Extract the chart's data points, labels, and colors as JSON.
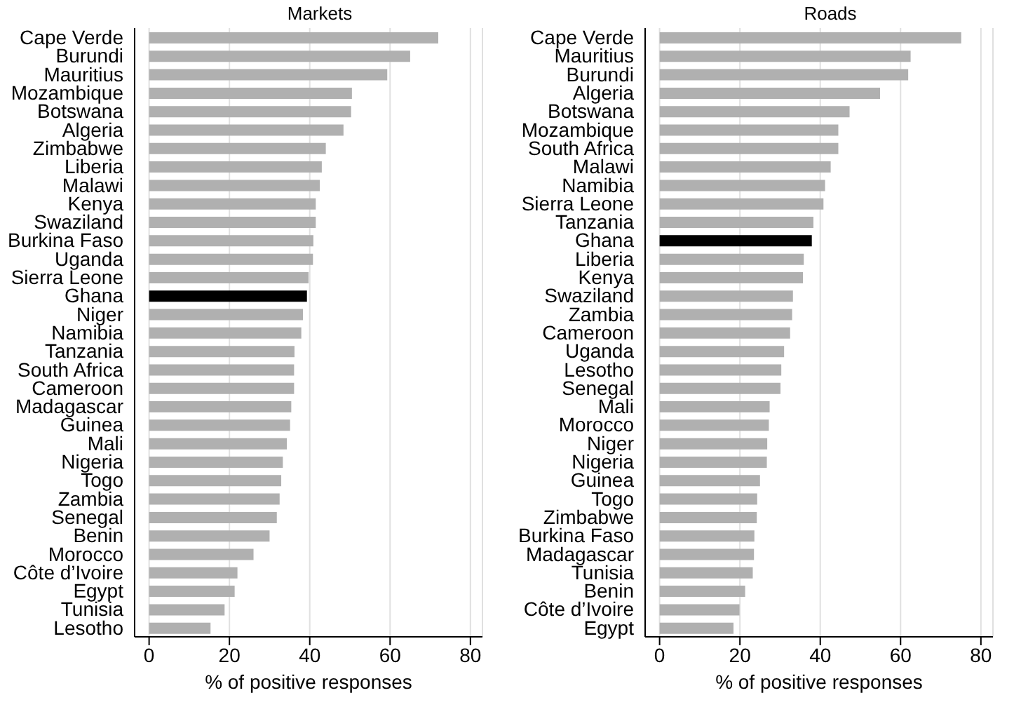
{
  "chart_data": [
    {
      "type": "bar",
      "orientation": "horizontal",
      "title": "Markets",
      "xlabel": "% of positive responses",
      "grid": "x",
      "xlim": [
        -3.6,
        83
      ],
      "xticks": [
        0,
        20,
        40,
        60,
        80
      ],
      "categories": [
        "Cape Verde",
        "Burundi",
        "Mauritius",
        "Mozambique",
        "Botswana",
        "Algeria",
        "Zimbabwe",
        "Liberia",
        "Malawi",
        "Kenya",
        "Swaziland",
        "Burkina Faso",
        "Uganda",
        "Sierra Leone",
        "Ghana",
        "Niger",
        "Namibia",
        "Tanzania",
        "South Africa",
        "Cameroon",
        "Madagascar",
        "Guinea",
        "Mali",
        "Nigeria",
        "Togo",
        "Zambia",
        "Senegal",
        "Benin",
        "Morocco",
        "Côte d’Ivoire",
        "Egypt",
        "Tunisia",
        "Lesotho"
      ],
      "values": [
        72.0,
        65.0,
        59.3,
        50.5,
        50.3,
        48.4,
        44.0,
        43.0,
        42.5,
        41.5,
        41.5,
        40.9,
        40.8,
        39.7,
        39.3,
        38.3,
        37.9,
        36.2,
        36.1,
        36.1,
        35.4,
        35.1,
        34.3,
        33.3,
        32.9,
        32.5,
        31.8,
        30.0,
        26.0,
        22.0,
        21.3,
        18.8,
        15.3
      ],
      "colors": [
        "#b0b0b0",
        "#b0b0b0",
        "#b0b0b0",
        "#b0b0b0",
        "#b0b0b0",
        "#b0b0b0",
        "#b0b0b0",
        "#b0b0b0",
        "#b0b0b0",
        "#b0b0b0",
        "#b0b0b0",
        "#b0b0b0",
        "#b0b0b0",
        "#b0b0b0",
        "#000000",
        "#b0b0b0",
        "#b0b0b0",
        "#b0b0b0",
        "#b0b0b0",
        "#b0b0b0",
        "#b0b0b0",
        "#b0b0b0",
        "#b0b0b0",
        "#b0b0b0",
        "#b0b0b0",
        "#b0b0b0",
        "#b0b0b0",
        "#b0b0b0",
        "#b0b0b0",
        "#b0b0b0",
        "#b0b0b0",
        "#b0b0b0",
        "#b0b0b0"
      ]
    },
    {
      "type": "bar",
      "orientation": "horizontal",
      "title": "Roads",
      "xlabel": "% of positive responses",
      "grid": "x",
      "xlim": [
        -3.6,
        83
      ],
      "xticks": [
        0,
        20,
        40,
        60,
        80
      ],
      "categories": [
        "Cape Verde",
        "Mauritius",
        "Burundi",
        "Algeria",
        "Botswana",
        "Mozambique",
        "South Africa",
        "Malawi",
        "Namibia",
        "Sierra Leone",
        "Tanzania",
        "Ghana",
        "Liberia",
        "Kenya",
        "Swaziland",
        "Zambia",
        "Cameroon",
        "Uganda",
        "Lesotho",
        "Senegal",
        "Mali",
        "Morocco",
        "Niger",
        "Nigeria",
        "Guinea",
        "Togo",
        "Zimbabwe",
        "Burkina Faso",
        "Madagascar",
        "Tunisia",
        "Benin",
        "Côte d’Ivoire",
        "Egypt"
      ],
      "values": [
        75.1,
        62.5,
        61.9,
        54.9,
        47.3,
        44.5,
        44.5,
        42.6,
        41.2,
        40.8,
        38.3,
        37.9,
        35.9,
        35.7,
        33.2,
        33.0,
        32.5,
        31.0,
        30.3,
        30.1,
        27.4,
        27.2,
        26.8,
        26.7,
        25.0,
        24.3,
        24.2,
        23.6,
        23.5,
        23.2,
        21.3,
        19.9,
        18.4
      ],
      "colors": [
        "#b0b0b0",
        "#b0b0b0",
        "#b0b0b0",
        "#b0b0b0",
        "#b0b0b0",
        "#b0b0b0",
        "#b0b0b0",
        "#b0b0b0",
        "#b0b0b0",
        "#b0b0b0",
        "#b0b0b0",
        "#000000",
        "#b0b0b0",
        "#b0b0b0",
        "#b0b0b0",
        "#b0b0b0",
        "#b0b0b0",
        "#b0b0b0",
        "#b0b0b0",
        "#b0b0b0",
        "#b0b0b0",
        "#b0b0b0",
        "#b0b0b0",
        "#b0b0b0",
        "#b0b0b0",
        "#b0b0b0",
        "#b0b0b0",
        "#b0b0b0",
        "#b0b0b0",
        "#b0b0b0",
        "#b0b0b0",
        "#b0b0b0",
        "#b0b0b0"
      ]
    }
  ]
}
